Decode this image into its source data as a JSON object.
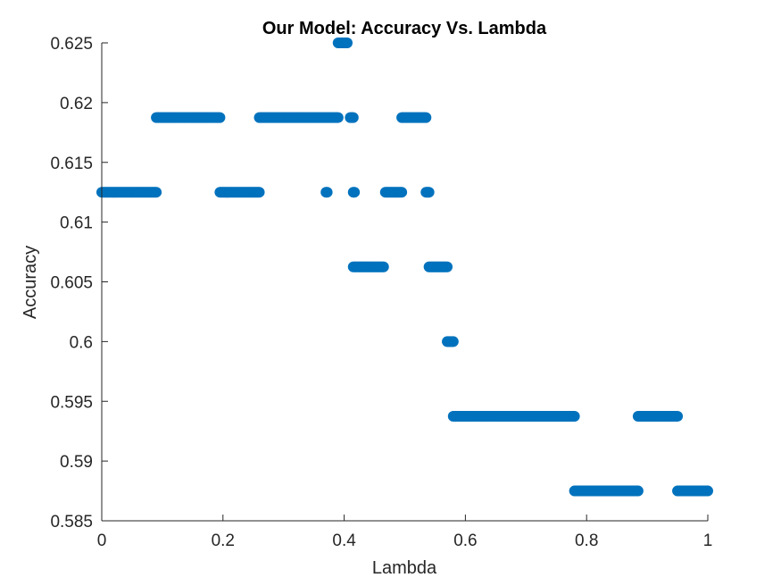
{
  "chart_data": {
    "type": "scatter",
    "title": "Our Model: Accuracy Vs. Lambda",
    "xlabel": "Lambda",
    "ylabel": "Accuracy",
    "xlim": [
      0,
      1
    ],
    "ylim": [
      0.585,
      0.625
    ],
    "xticks": [
      0,
      0.2,
      0.4,
      0.6,
      0.8,
      1
    ],
    "xtick_labels": [
      "0",
      "0.2",
      "0.4",
      "0.6",
      "0.8",
      "1"
    ],
    "yticks": [
      0.585,
      0.59,
      0.595,
      0.6,
      0.605,
      0.61,
      0.615,
      0.62,
      0.625
    ],
    "ytick_labels": [
      "0.585",
      "0.59",
      "0.595",
      "0.6",
      "0.605",
      "0.61",
      "0.615",
      "0.62",
      "0.625"
    ],
    "grid": false,
    "marker_color": "#0072BD",
    "point_step": 0.002,
    "segments": [
      {
        "x_start": 0.0,
        "x_end": 0.09,
        "y": 0.6125
      },
      {
        "x_start": 0.09,
        "x_end": 0.195,
        "y": 0.61875
      },
      {
        "x_start": 0.195,
        "x_end": 0.26,
        "y": 0.6125
      },
      {
        "x_start": 0.26,
        "x_end": 0.39,
        "y": 0.61875
      },
      {
        "x_start": 0.37,
        "x_end": 0.372,
        "y": 0.6125
      },
      {
        "x_start": 0.39,
        "x_end": 0.405,
        "y": 0.625
      },
      {
        "x_start": 0.41,
        "x_end": 0.415,
        "y": 0.61875
      },
      {
        "x_start": 0.415,
        "x_end": 0.417,
        "y": 0.6125
      },
      {
        "x_start": 0.415,
        "x_end": 0.465,
        "y": 0.60625
      },
      {
        "x_start": 0.468,
        "x_end": 0.495,
        "y": 0.6125
      },
      {
        "x_start": 0.495,
        "x_end": 0.535,
        "y": 0.61875
      },
      {
        "x_start": 0.535,
        "x_end": 0.54,
        "y": 0.6125
      },
      {
        "x_start": 0.54,
        "x_end": 0.57,
        "y": 0.60625
      },
      {
        "x_start": 0.57,
        "x_end": 0.58,
        "y": 0.6
      },
      {
        "x_start": 0.58,
        "x_end": 0.78,
        "y": 0.59375
      },
      {
        "x_start": 0.78,
        "x_end": 0.885,
        "y": 0.5875
      },
      {
        "x_start": 0.885,
        "x_end": 0.95,
        "y": 0.59375
      },
      {
        "x_start": 0.95,
        "x_end": 1.0,
        "y": 0.5875
      }
    ]
  }
}
